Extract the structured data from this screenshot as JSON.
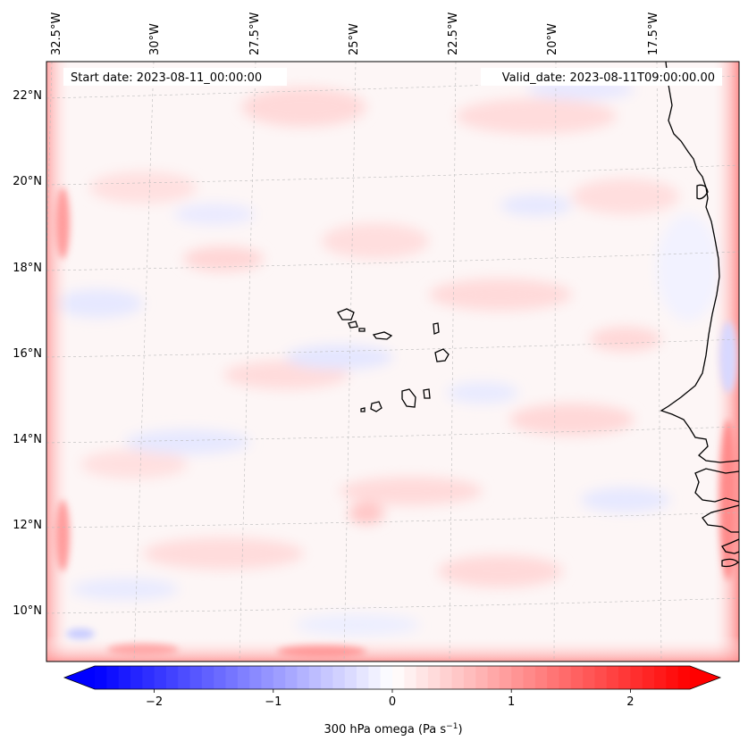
{
  "header": {
    "start_date": "Start date: 2023-08-11_00:00:00",
    "valid_date": "Valid_date: 2023-08-11T09:00:00.00"
  },
  "lon_labels": [
    "32.5°W",
    "30°W",
    "27.5°W",
    "25°W",
    "22.5°W",
    "20°W",
    "17.5°W"
  ],
  "lat_labels": [
    "22°N",
    "20°N",
    "18°N",
    "16°N",
    "14°N",
    "12°N",
    "10°N"
  ],
  "colorbar": {
    "ticks": [
      "−2",
      "−1",
      "0",
      "1",
      "2"
    ],
    "tick_values": [
      -2,
      -1,
      0,
      1,
      2
    ],
    "range": [
      -2.5,
      2.5
    ],
    "label_main": "300 hPa omega (Pa s",
    "label_exp": "−1",
    "label_close": ")",
    "colors": {
      "low": "#0000ff",
      "mid": "#ffffff",
      "high": "#ff0000"
    }
  },
  "colors": {
    "coastline": "#000000",
    "gridline": "#bbbbbb",
    "frame": "#000000"
  }
}
